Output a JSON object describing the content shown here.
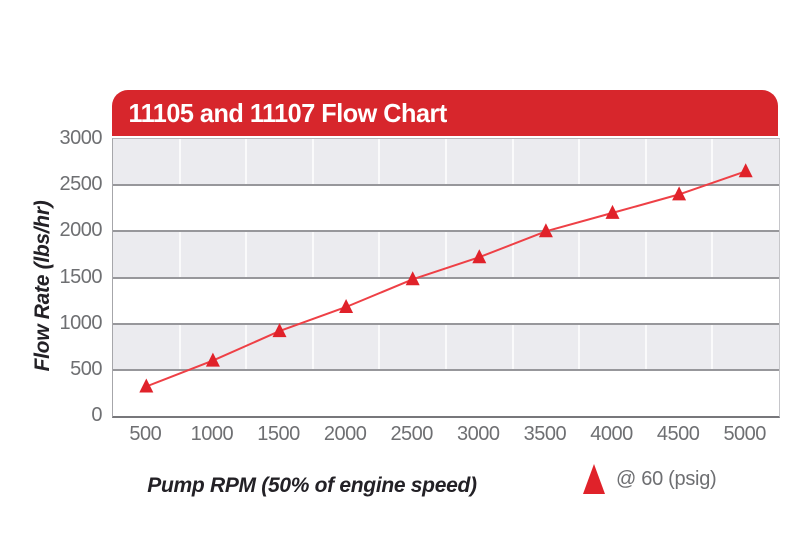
{
  "header": {
    "title": "11105 and 11107 Flow Chart"
  },
  "colors": {
    "banner_red": "#D7262C",
    "marker_red": "#E0222A",
    "line_red": "#EE4046",
    "band_gray": "#EBEBEF",
    "gridline_gray": "#97979B",
    "tick_text": "#6E6F72",
    "axis_title_text": "#232126",
    "legend_text": "#6E6F72"
  },
  "chart_data": {
    "type": "line",
    "title": "11105 and 11107 Flow Chart",
    "xlabel": "Pump RPM (50% of engine speed)",
    "ylabel": "Flow Rate (lbs/hr)",
    "categories": [
      500,
      1000,
      1500,
      2000,
      2500,
      3000,
      3500,
      4000,
      4500,
      5000
    ],
    "series": [
      {
        "name": "@ 60 (psig)",
        "marker": "triangle-up",
        "values": [
          320,
          600,
          920,
          1180,
          1480,
          1720,
          2000,
          2200,
          2400,
          2650
        ]
      }
    ],
    "ylim": [
      0,
      3000
    ],
    "ytick_step": 500,
    "yticks": [
      0,
      500,
      1000,
      1500,
      2000,
      2500,
      3000
    ],
    "grid": "alternating-horizontal-bands",
    "legend_position": "bottom-right"
  },
  "legend": {
    "label": "@ 60 (psig)"
  }
}
